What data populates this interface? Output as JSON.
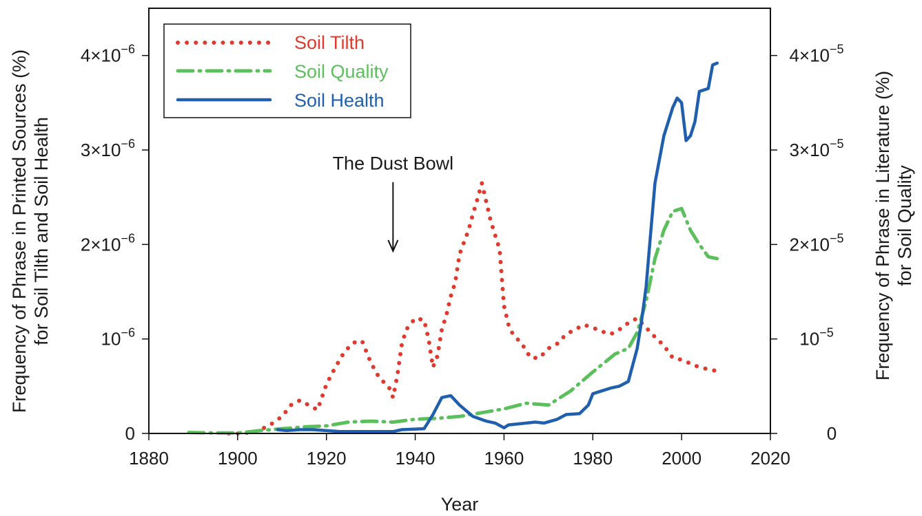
{
  "chart_data": {
    "type": "line",
    "xlabel": "Year",
    "ylabel_left": [
      "Frequency of Phrase in Printed Sources (%)",
      "for Soil Tilth and Soil Health"
    ],
    "ylabel_right": [
      "Frequency of Phrase in Literature (%)",
      "for Soil Quality"
    ],
    "xlim": [
      1880,
      2020
    ],
    "ylim_left": [
      0,
      4.5e-06
    ],
    "ylim_right": [
      0,
      4.5e-05
    ],
    "x_ticks": [
      {
        "value": 1880,
        "label": "1880"
      },
      {
        "value": 1900,
        "label": "1900"
      },
      {
        "value": 1920,
        "label": "1920"
      },
      {
        "value": 1940,
        "label": "1940"
      },
      {
        "value": 1960,
        "label": "1960"
      },
      {
        "value": 1980,
        "label": "1980"
      },
      {
        "value": 2000,
        "label": "2000"
      },
      {
        "value": 2020,
        "label": "2020"
      }
    ],
    "y_ticks_left": [
      {
        "value": 0,
        "base": "0",
        "exp": ""
      },
      {
        "value": 1e-06,
        "base": "10",
        "exp": "−6"
      },
      {
        "value": 2e-06,
        "base": "2×10",
        "exp": "−6"
      },
      {
        "value": 3e-06,
        "base": "3×10",
        "exp": "−6"
      },
      {
        "value": 4e-06,
        "base": "4×10",
        "exp": "−6"
      }
    ],
    "y_ticks_right": [
      {
        "value": 0,
        "base": "0",
        "exp": ""
      },
      {
        "value": 1e-05,
        "base": "10",
        "exp": "−5"
      },
      {
        "value": 2e-05,
        "base": "2×10",
        "exp": "−5"
      },
      {
        "value": 3e-05,
        "base": "3×10",
        "exp": "−5"
      },
      {
        "value": 4e-05,
        "base": "4×10",
        "exp": "−5"
      }
    ],
    "legend_position": "top-left",
    "annotation": {
      "text": "The Dust Bowl",
      "x": 1935,
      "y_from": 2.66e-06,
      "y_to": 1.93e-06
    },
    "series": [
      {
        "name": "Soil Tilth",
        "axis": "left",
        "style": "dotted",
        "color": "#e03a2e",
        "x": [
          1898,
          1901,
          1904,
          1907,
          1910,
          1912,
          1914,
          1916,
          1918,
          1920,
          1922,
          1924,
          1926,
          1928,
          1930,
          1932,
          1934,
          1935,
          1936,
          1937,
          1938,
          1940,
          1942,
          1943,
          1944,
          1945,
          1946,
          1947,
          1948,
          1949,
          1950,
          1952,
          1953,
          1954,
          1955,
          1956,
          1957,
          1958,
          1959,
          1960,
          1961,
          1962,
          1964,
          1966,
          1968,
          1970,
          1972,
          1974,
          1976,
          1978,
          1980,
          1982,
          1984,
          1986,
          1988,
          1990,
          1992,
          1994,
          1996,
          1998,
          2000,
          2002,
          2004,
          2006,
          2008
        ],
        "y": [
          0.0,
          0.0,
          2e-08,
          8e-08,
          1.8e-07,
          3e-07,
          3.5e-07,
          3e-07,
          2.5e-07,
          5.2e-07,
          7e-07,
          8.6e-07,
          9.6e-07,
          9.8e-07,
          7.5e-07,
          5.8e-07,
          5e-07,
          3.8e-07,
          6.2e-07,
          9.5e-07,
          1.1e-06,
          1.22e-06,
          1.2e-06,
          1e-06,
          7e-07,
          8.2e-07,
          1.1e-06,
          1.25e-06,
          1.45e-06,
          1.6e-06,
          1.9e-06,
          2.15e-06,
          2.32e-06,
          2.48e-06,
          2.65e-06,
          2.45e-06,
          2.25e-06,
          2.1e-06,
          1.95e-06,
          1.35e-06,
          1.15e-06,
          1.05e-06,
          9.5e-07,
          8e-07,
          8e-07,
          9e-07,
          9.5e-07,
          1.05e-06,
          1.1e-06,
          1.15e-06,
          1.12e-06,
          1.08e-06,
          1.05e-06,
          1.1e-06,
          1.17e-06,
          1.22e-06,
          1.12e-06,
          1.02e-06,
          9.3e-07,
          8e-07,
          7.8e-07,
          7.4e-07,
          7e-07,
          6.8e-07,
          6.6e-07
        ]
      },
      {
        "name": "Soil Quality",
        "axis": "right",
        "style": "dash-dot",
        "color": "#5bbf5b",
        "x": [
          1889,
          1895,
          1900,
          1905,
          1910,
          1915,
          1920,
          1925,
          1930,
          1935,
          1940,
          1945,
          1950,
          1955,
          1960,
          1965,
          1970,
          1975,
          1980,
          1985,
          1988,
          1990,
          1992,
          1994,
          1996,
          1998,
          2000,
          2002,
          2004,
          2006,
          2008
        ],
        "y": [
          1e-07,
          5e-08,
          5e-08,
          3e-07,
          5e-07,
          7e-07,
          8e-07,
          1.2e-06,
          1.3e-06,
          1.2e-06,
          1.5e-06,
          1.6e-06,
          1.8e-06,
          2.2e-06,
          2.6e-06,
          3.2e-06,
          3e-06,
          4.5e-06,
          6.5e-06,
          8.4e-06,
          9e-06,
          1.07e-05,
          1.4e-05,
          1.85e-05,
          2.15e-05,
          2.35e-05,
          2.38e-05,
          2.15e-05,
          2e-05,
          1.87e-05,
          1.85e-05
        ]
      },
      {
        "name": "Soil Health",
        "axis": "left",
        "style": "solid",
        "color": "#1f5fad",
        "x": [
          1909,
          1911,
          1914,
          1917,
          1920,
          1923,
          1926,
          1930,
          1935,
          1937,
          1942,
          1944,
          1946,
          1948,
          1950,
          1953,
          1956,
          1958,
          1960,
          1961,
          1963,
          1967,
          1969,
          1972,
          1974,
          1977,
          1979,
          1980,
          1982,
          1984,
          1986,
          1988,
          1990,
          1991,
          1992,
          1993,
          1994,
          1996,
          1998,
          1999,
          2000,
          2001,
          2002,
          2003,
          2004,
          2006,
          2007,
          2008
        ],
        "y": [
          4e-08,
          3e-08,
          4e-08,
          4e-08,
          3e-08,
          2e-08,
          2e-08,
          2e-08,
          2e-08,
          4e-08,
          5e-08,
          2e-07,
          3.8e-07,
          4e-07,
          3e-07,
          1.8e-07,
          1.3e-07,
          1.1e-07,
          6e-08,
          9e-08,
          1e-07,
          1.2e-07,
          1.1e-07,
          1.5e-07,
          2e-07,
          2.1e-07,
          3e-07,
          4.2e-07,
          4.5e-07,
          4.8e-07,
          5e-07,
          5.5e-07,
          9e-07,
          1.2e-06,
          1.55e-06,
          2.1e-06,
          2.65e-06,
          3.15e-06,
          3.45e-06,
          3.55e-06,
          3.5e-06,
          3.1e-06,
          3.15e-06,
          3.3e-06,
          3.62e-06,
          3.65e-06,
          3.9e-06,
          3.92e-06
        ]
      }
    ]
  }
}
